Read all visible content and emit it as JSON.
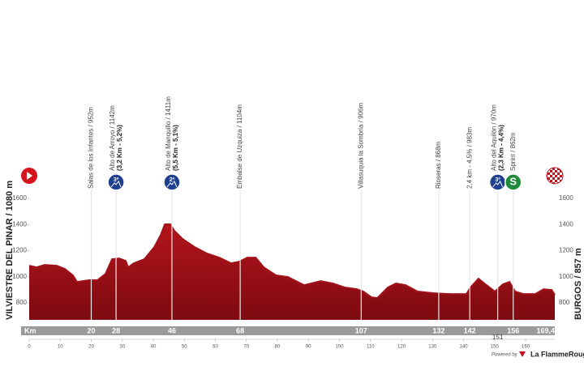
{
  "chart_data": {
    "type": "area",
    "color": "#a3121a",
    "start_label": "VILVIESTRE DEL PINAR / 1080 m",
    "finish_label": "BURGOS / 857 m",
    "km_label": "Km",
    "x": [
      0,
      2.4,
      5.0,
      8.9,
      11.5,
      14.1,
      15.4,
      19.3,
      22.0,
      24.6,
      26.7,
      29.0,
      31.1,
      31.9,
      33.7,
      37.1,
      40.3,
      42.4,
      43.7,
      45.5,
      46.8,
      49.4,
      53.3,
      57.3,
      61.2,
      65.1,
      67.7,
      70.3,
      73.0,
      75.6,
      79.5,
      83.4,
      88.6,
      93.9,
      97.8,
      101.7,
      105.6,
      107.7,
      110.3,
      112.2,
      115.6,
      118.2,
      121.3,
      125.2,
      130.5,
      135.7,
      140.9,
      142.2,
      144.8,
      146.7,
      150.1,
      152.7,
      154.8,
      156.6,
      159.2,
      163.1,
      165.8,
      168.4,
      169.4
    ],
    "values": [
      1085,
      1073,
      1091,
      1085,
      1060,
      1011,
      961,
      974,
      974,
      1023,
      1135,
      1141,
      1122,
      1073,
      1104,
      1135,
      1228,
      1321,
      1402,
      1402,
      1352,
      1290,
      1228,
      1178,
      1147,
      1104,
      1116,
      1147,
      1147,
      1073,
      1011,
      998,
      936,
      967,
      949,
      918,
      905,
      887,
      843,
      837,
      918,
      949,
      936,
      887,
      874,
      868,
      868,
      918,
      986,
      949,
      887,
      943,
      961,
      887,
      868,
      868,
      905,
      899,
      862
    ],
    "xlim": [
      0,
      169.4
    ],
    "ylim": [
      670,
      1700
    ],
    "yticks": [
      800,
      1000,
      1200,
      1400,
      1600
    ],
    "xticks": [
      0,
      10,
      20,
      30,
      40,
      50,
      60,
      70,
      80,
      90,
      100,
      110,
      120,
      130,
      140,
      150,
      160
    ],
    "finish_km": {
      "value": 169.4,
      "label": "169,4"
    },
    "waypoints": [
      {
        "km": 20,
        "label": "Salas de los Infantes / 952m"
      },
      {
        "km": 28,
        "label": "Alto de Arroyo / 1142m",
        "detail": "(3,2 Km - 5,2%)",
        "icon": "3ª"
      },
      {
        "km": 46,
        "label": "Alto de Manquillo / 1411m",
        "detail": "(5,5 Km - 5,1%)",
        "icon": "2ª"
      },
      {
        "km": 68,
        "label": "Embalse de Uzquiza / 1104m"
      },
      {
        "km": 107,
        "label": "Villasuquia la Sombría / 906m"
      },
      {
        "km": 132,
        "label": "Rioseras / 868m"
      },
      {
        "km": 142,
        "label": "2,4 km - 4,5% / 983m"
      },
      {
        "km": 151,
        "label": "Alto del Aquilón / 970m",
        "detail": "(2,3 Km - 4,4%)",
        "icon": "3ª"
      },
      {
        "km": 156,
        "label": "Sprint / 862m",
        "icon": "S"
      }
    ]
  },
  "footer": {
    "powered_by": "Powered by",
    "brand": "La FlammeRouge"
  }
}
